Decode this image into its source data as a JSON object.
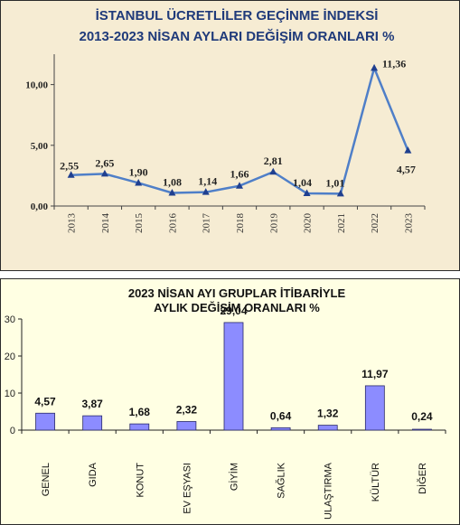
{
  "chart_data": [
    {
      "type": "line",
      "title": "İSTANBUL ÜCRETLİLER GEÇİNME İNDEKSİ",
      "subtitle": "2013-2023 NİSAN AYLARI DEĞİŞİM ORANLARI %",
      "x": [
        "2013",
        "2014",
        "2015",
        "2016",
        "2017",
        "2018",
        "2019",
        "2020",
        "2021",
        "2022",
        "2023"
      ],
      "values": [
        2.55,
        2.65,
        1.9,
        1.08,
        1.14,
        1.66,
        2.81,
        1.04,
        1.01,
        11.36,
        4.57
      ],
      "labels": [
        "2,55",
        "2,65",
        "1,90",
        "1,08",
        "1,14",
        "1,66",
        "2,81",
        "1,04",
        "1,01",
        "11,36",
        "4,57"
      ],
      "yticks": [
        "0,00",
        "5,00",
        "10,00"
      ],
      "ylim": [
        0,
        12.5
      ],
      "color": "#4f7fc8",
      "grid": false
    },
    {
      "type": "bar",
      "title": "2023 NİSAN AYI GRUPLAR İTİBARİYLE",
      "subtitle": "AYLIK DEĞİŞİM ORANLARI %",
      "categories": [
        "GENEL",
        "GIDA",
        "KONUT",
        "EV EŞYASI",
        "GİYİM",
        "SAĞLIK",
        "ULAŞTIRMA",
        "KÜLTÜR",
        "DİĞER"
      ],
      "values": [
        4.57,
        3.87,
        1.68,
        2.32,
        29.04,
        0.64,
        1.32,
        11.97,
        0.24
      ],
      "labels": [
        "4,57",
        "3,87",
        "1,68",
        "2,32",
        "29,04",
        "0,64",
        "1,32",
        "11,97",
        "0,24"
      ],
      "yticks": [
        "0",
        "10",
        "20",
        "30"
      ],
      "ylim": [
        0,
        30
      ],
      "color": "#8c8cff",
      "grid": false
    }
  ]
}
